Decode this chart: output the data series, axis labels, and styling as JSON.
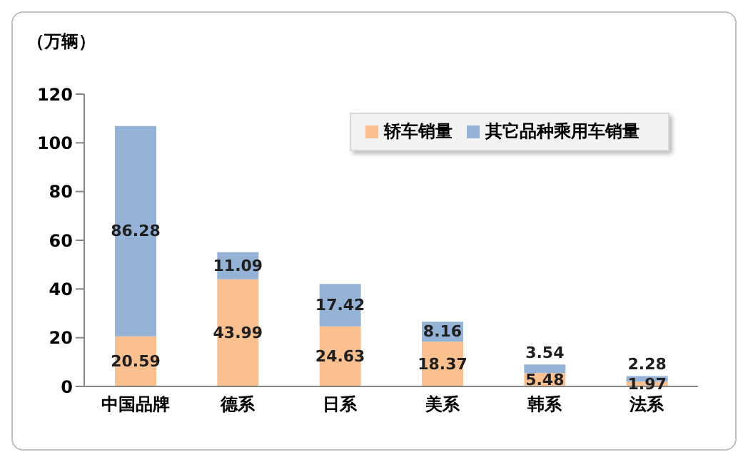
{
  "chart_data": {
    "type": "bar",
    "stacked": true,
    "ylabel": "（万辆）",
    "categories": [
      "中国品牌",
      "德系",
      "日系",
      "美系",
      "韩系",
      "法系"
    ],
    "series": [
      {
        "name": "轿车销量",
        "color": "#fac090",
        "values": [
          20.59,
          43.99,
          24.63,
          18.37,
          5.48,
          1.97
        ]
      },
      {
        "name": "其它品种乘用车销量",
        "color": "#95b3d7",
        "values": [
          86.28,
          11.09,
          17.42,
          8.16,
          3.54,
          2.28
        ]
      }
    ],
    "ylim": [
      0,
      120
    ],
    "yticks": [
      0,
      20,
      40,
      60,
      80,
      100,
      120
    ],
    "grid": false,
    "legend": "top right",
    "data_labels": true
  }
}
